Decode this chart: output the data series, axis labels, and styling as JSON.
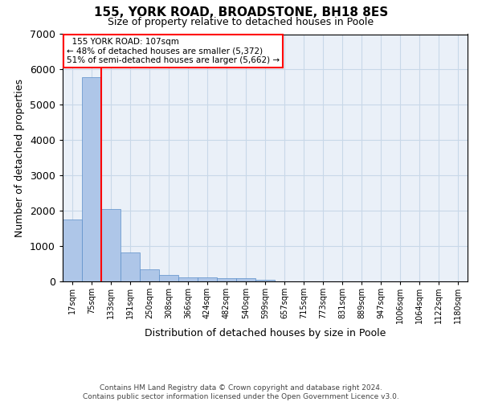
{
  "title": "155, YORK ROAD, BROADSTONE, BH18 8ES",
  "subtitle": "Size of property relative to detached houses in Poole",
  "xlabel": "Distribution of detached houses by size in Poole",
  "ylabel": "Number of detached properties",
  "bin_labels": [
    "17sqm",
    "75sqm",
    "133sqm",
    "191sqm",
    "250sqm",
    "308sqm",
    "366sqm",
    "424sqm",
    "482sqm",
    "540sqm",
    "599sqm",
    "657sqm",
    "715sqm",
    "773sqm",
    "831sqm",
    "889sqm",
    "947sqm",
    "1006sqm",
    "1064sqm",
    "1122sqm",
    "1180sqm"
  ],
  "bar_values": [
    1760,
    5790,
    2055,
    820,
    340,
    175,
    115,
    110,
    90,
    80,
    55,
    5,
    0,
    0,
    0,
    0,
    0,
    0,
    0,
    0,
    0
  ],
  "bar_color": "#aec6e8",
  "bar_edgecolor": "#5b8fc9",
  "grid_color": "#c8d8e8",
  "background_color": "#eaf0f8",
  "ylim": [
    0,
    7000
  ],
  "yticks": [
    0,
    1000,
    2000,
    3000,
    4000,
    5000,
    6000,
    7000
  ],
  "red_line_x": 1.5,
  "annotation_text": "  155 YORK ROAD: 107sqm\n← 48% of detached houses are smaller (5,372)\n51% of semi-detached houses are larger (5,662) →",
  "footer_line1": "Contains HM Land Registry data © Crown copyright and database right 2024.",
  "footer_line2": "Contains public sector information licensed under the Open Government Licence v3.0."
}
